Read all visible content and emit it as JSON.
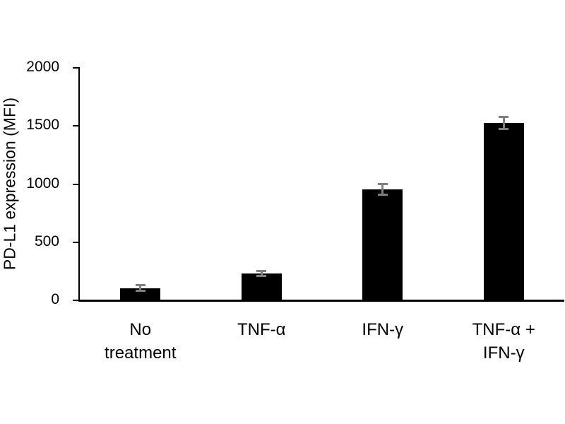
{
  "chart_data": {
    "type": "bar",
    "ylabel": "PD-L1 expression (MFI)",
    "categories": [
      "No\ntreatment",
      "TNF-α",
      "IFN-γ",
      "TNF-α +\nIFN-γ"
    ],
    "values": [
      100,
      225,
      950,
      1520
    ],
    "errors": [
      35,
      30,
      55,
      60
    ],
    "ylim": [
      0,
      2000
    ],
    "yticks": [
      0,
      500,
      1000,
      1500,
      2000
    ],
    "bar_color": "#000000",
    "error_bar_color": "#7f7f7f",
    "axis_color": "#000000",
    "grid": false,
    "legend_position": "none"
  }
}
